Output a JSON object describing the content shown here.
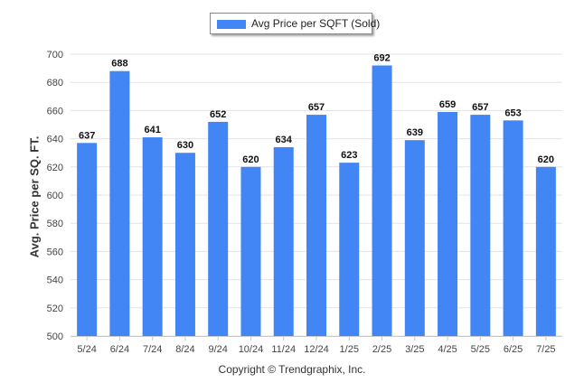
{
  "legend": {
    "label": "Avg Price per SQFT (Sold)",
    "color": "#4285f4"
  },
  "ylabel": "Avg. Price per SQ. FT.",
  "copyright": "Copyright © Trendgraphix, Inc.",
  "chart_data": {
    "type": "bar",
    "title": "",
    "xlabel": "",
    "ylabel": "Avg. Price per SQ. FT.",
    "ylim": [
      500,
      700
    ],
    "yticks": [
      500,
      520,
      540,
      560,
      580,
      600,
      620,
      640,
      660,
      680,
      700
    ],
    "grid": true,
    "legend_position": "top-center",
    "categories": [
      "5/24",
      "6/24",
      "7/24",
      "8/24",
      "9/24",
      "10/24",
      "11/24",
      "12/24",
      "1/25",
      "2/25",
      "3/25",
      "4/25",
      "5/25",
      "6/25",
      "7/25"
    ],
    "series": [
      {
        "name": "Avg Price per SQFT (Sold)",
        "color": "#4285f4",
        "values": [
          637,
          688,
          641,
          630,
          652,
          620,
          634,
          657,
          623,
          692,
          639,
          659,
          657,
          653,
          620
        ]
      }
    ]
  }
}
